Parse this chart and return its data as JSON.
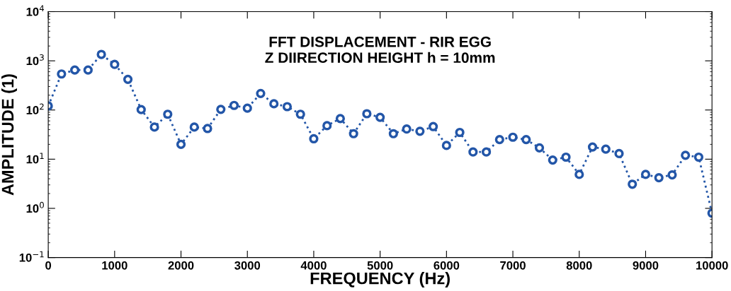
{
  "chart_data": {
    "type": "line",
    "title": "FFT DISPLACEMENT - RIR EGG\nZ DIIRECTION HEIGHT h = 10mm",
    "xlabel": "FREQUENCY (Hz)",
    "ylabel": "AMPLITUDE (1)",
    "x": [
      0,
      200,
      400,
      600,
      800,
      1000,
      1200,
      1400,
      1600,
      1800,
      2000,
      2200,
      2400,
      2600,
      2800,
      3000,
      3200,
      3400,
      3600,
      3800,
      4000,
      4200,
      4400,
      4600,
      4800,
      5000,
      5200,
      5400,
      5600,
      5800,
      6000,
      6200,
      6400,
      6600,
      6800,
      7000,
      7200,
      7400,
      7600,
      7800,
      8000,
      8200,
      8400,
      8600,
      8800,
      9000,
      9200,
      9400,
      9600,
      9800,
      10000
    ],
    "series": [
      {
        "color": "#2356a8",
        "values": [
          121,
          540,
          650,
          650,
          1350,
          845,
          420,
          102,
          45,
          82,
          20,
          45,
          42,
          103,
          124,
          109,
          217,
          134,
          117,
          82,
          26,
          48,
          67,
          33,
          84,
          71,
          33,
          41,
          37,
          46,
          19,
          35,
          14,
          14,
          25,
          28,
          25,
          17,
          9.6,
          11,
          4.9,
          17.7,
          16,
          13,
          3.1,
          4.9,
          4.2,
          4.8,
          12,
          11,
          0.8
        ]
      }
    ],
    "log": "y",
    "xlim": [
      0,
      10000
    ],
    "ylim": [
      0.1,
      10000
    ],
    "xticks": [
      0,
      1000,
      2000,
      3000,
      4000,
      5000,
      6000,
      7000,
      8000,
      9000,
      10000
    ],
    "yticks": [
      {
        "value": 0.1,
        "label": "10$^{−1}$"
      },
      {
        "value": 1,
        "label": "10$^{0}$"
      },
      {
        "value": 10,
        "label": "10$^{1}$"
      },
      {
        "value": 100,
        "label": "10$^{2}$"
      },
      {
        "value": 1000,
        "label": "10$^{3}$"
      },
      {
        "value": 10000,
        "label": "10$^{4}$"
      }
    ],
    "grid": false,
    "legend": false,
    "marker": "circle",
    "line_style": "dotted"
  }
}
